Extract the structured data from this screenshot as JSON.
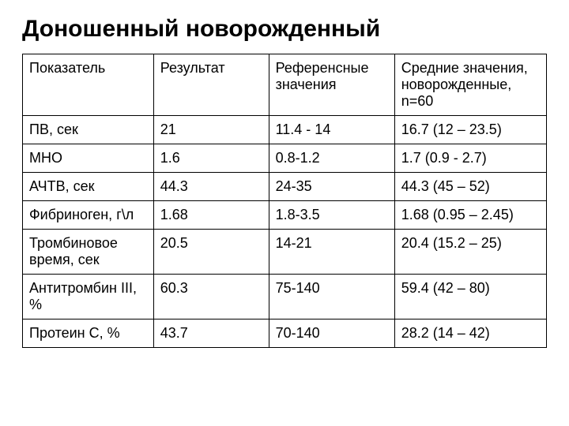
{
  "title": "Доношенный новорожденный",
  "table": {
    "columns": [
      "Показатель",
      "Результат",
      "Референсные значения",
      "Средние значения, новорожденные, n=60"
    ],
    "rows": [
      [
        "ПВ, сек",
        "21",
        "11.4 - 14",
        "16.7 (12 – 23.5)"
      ],
      [
        "МНО",
        "1.6",
        "0.8-1.2",
        "1.7 (0.9 - 2.7)"
      ],
      [
        "АЧТВ, сек",
        "44.3",
        "24-35",
        "44.3 (45 – 52)"
      ],
      [
        "Фибриноген, г\\л",
        "1.68",
        "1.8-3.5",
        "1.68 (0.95 – 2.45)"
      ],
      [
        "Тромбиновое время, сек",
        "20.5",
        "14-21",
        "20.4 (15.2 – 25)"
      ],
      [
        "Антитромбин III, %",
        "60.3",
        "75-140",
        "59.4 (42 – 80)"
      ],
      [
        "Протеин С, %",
        "43.7",
        "70-140",
        "28.2 (14 – 42)"
      ]
    ],
    "column_widths": [
      "25%",
      "22%",
      "24%",
      "29%"
    ],
    "border_color": "#000000",
    "text_color": "#000000",
    "font_size": 18,
    "title_font_size": 30,
    "background_color": "#ffffff"
  }
}
